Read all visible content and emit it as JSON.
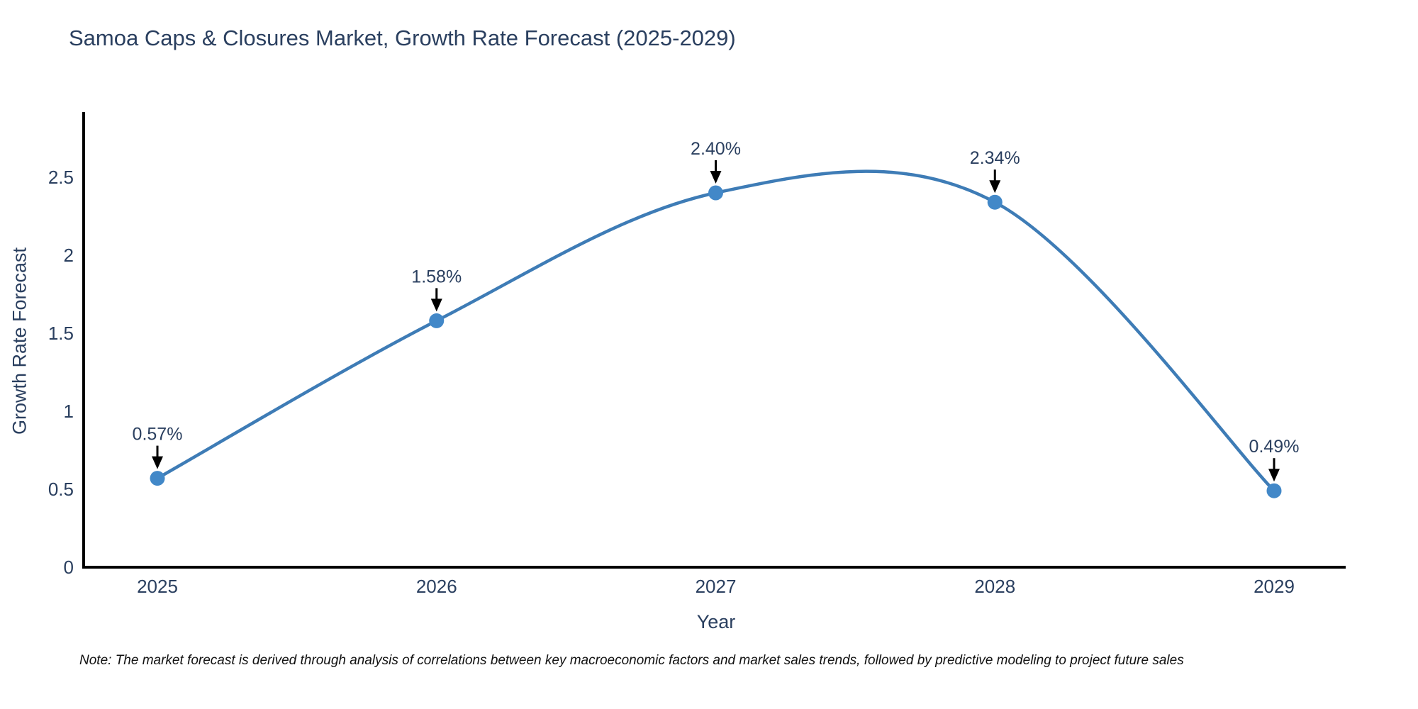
{
  "note": "Note: The market forecast is derived through analysis of correlations between key macroeconomic factors and market sales trends, followed by predictive modeling to project future sales",
  "chart_data": {
    "type": "line",
    "title": "Samoa Caps & Closures Market, Growth Rate Forecast (2025-2029)",
    "xlabel": "Year",
    "ylabel": "Growth Rate Forecast",
    "categories": [
      "2025",
      "2026",
      "2027",
      "2028",
      "2029"
    ],
    "values": [
      0.57,
      1.58,
      2.4,
      2.34,
      0.49
    ],
    "point_labels": [
      "0.57%",
      "1.58%",
      "2.40%",
      "2.34%",
      "0.49%"
    ],
    "y_ticks": [
      0,
      0.5,
      1,
      1.5,
      2,
      2.5
    ],
    "y_tick_labels": [
      "0",
      "0.5",
      "1",
      "1.5",
      "2",
      "2.5"
    ],
    "ylim": [
      0,
      2.9
    ],
    "line_shape": "spline",
    "grid": false,
    "legend": "none",
    "colors": {
      "line": "#3e7cb6",
      "marker": "#4288c8",
      "axis": "#000000",
      "text": "#2a3f5f",
      "annotation": "#2a3f5f",
      "arrow": "#000000"
    }
  }
}
